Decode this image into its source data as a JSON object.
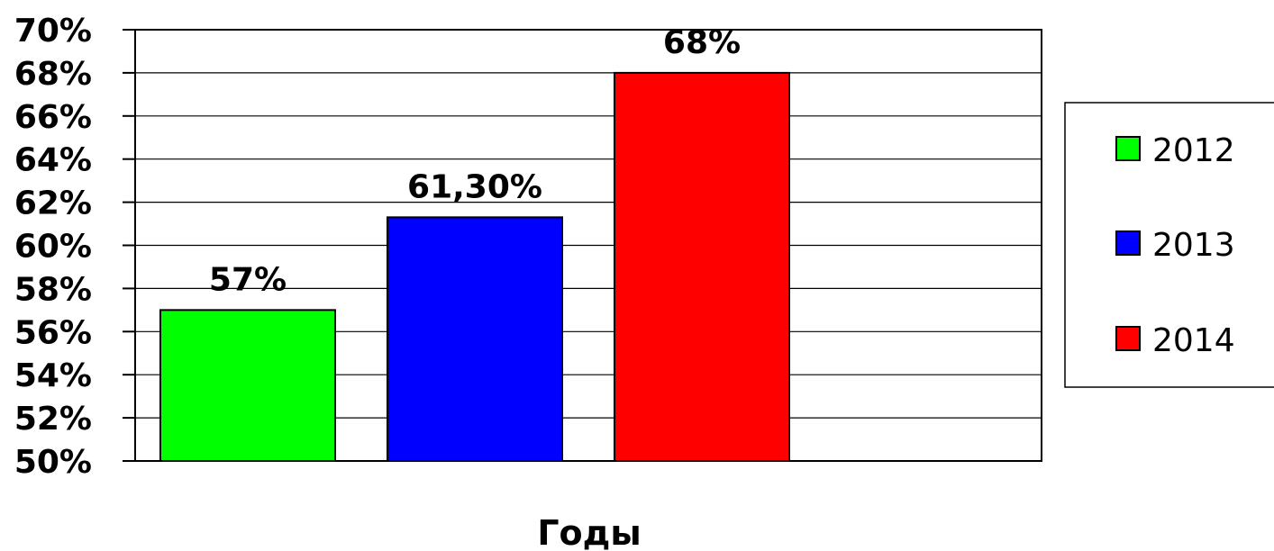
{
  "chart_data": {
    "type": "bar",
    "categories": [
      "2012",
      "2013",
      "2014"
    ],
    "values": [
      57,
      61.3,
      68
    ],
    "data_labels": [
      "57%",
      "61,30%",
      "68%"
    ],
    "colors": [
      "#00ff00",
      "#0000ff",
      "#ff0000"
    ],
    "xlabel": "Годы",
    "ylim": [
      50,
      70
    ],
    "yticks": [
      50,
      52,
      54,
      56,
      58,
      60,
      62,
      64,
      66,
      68,
      70
    ],
    "ytick_labels": [
      "50%",
      "52%",
      "54%",
      "56%",
      "58%",
      "60%",
      "62%",
      "64%",
      "66%",
      "68%",
      "70%"
    ],
    "grid": true,
    "legend": {
      "placement": "right",
      "entries": [
        "2012",
        "2013",
        "2014"
      ]
    }
  }
}
